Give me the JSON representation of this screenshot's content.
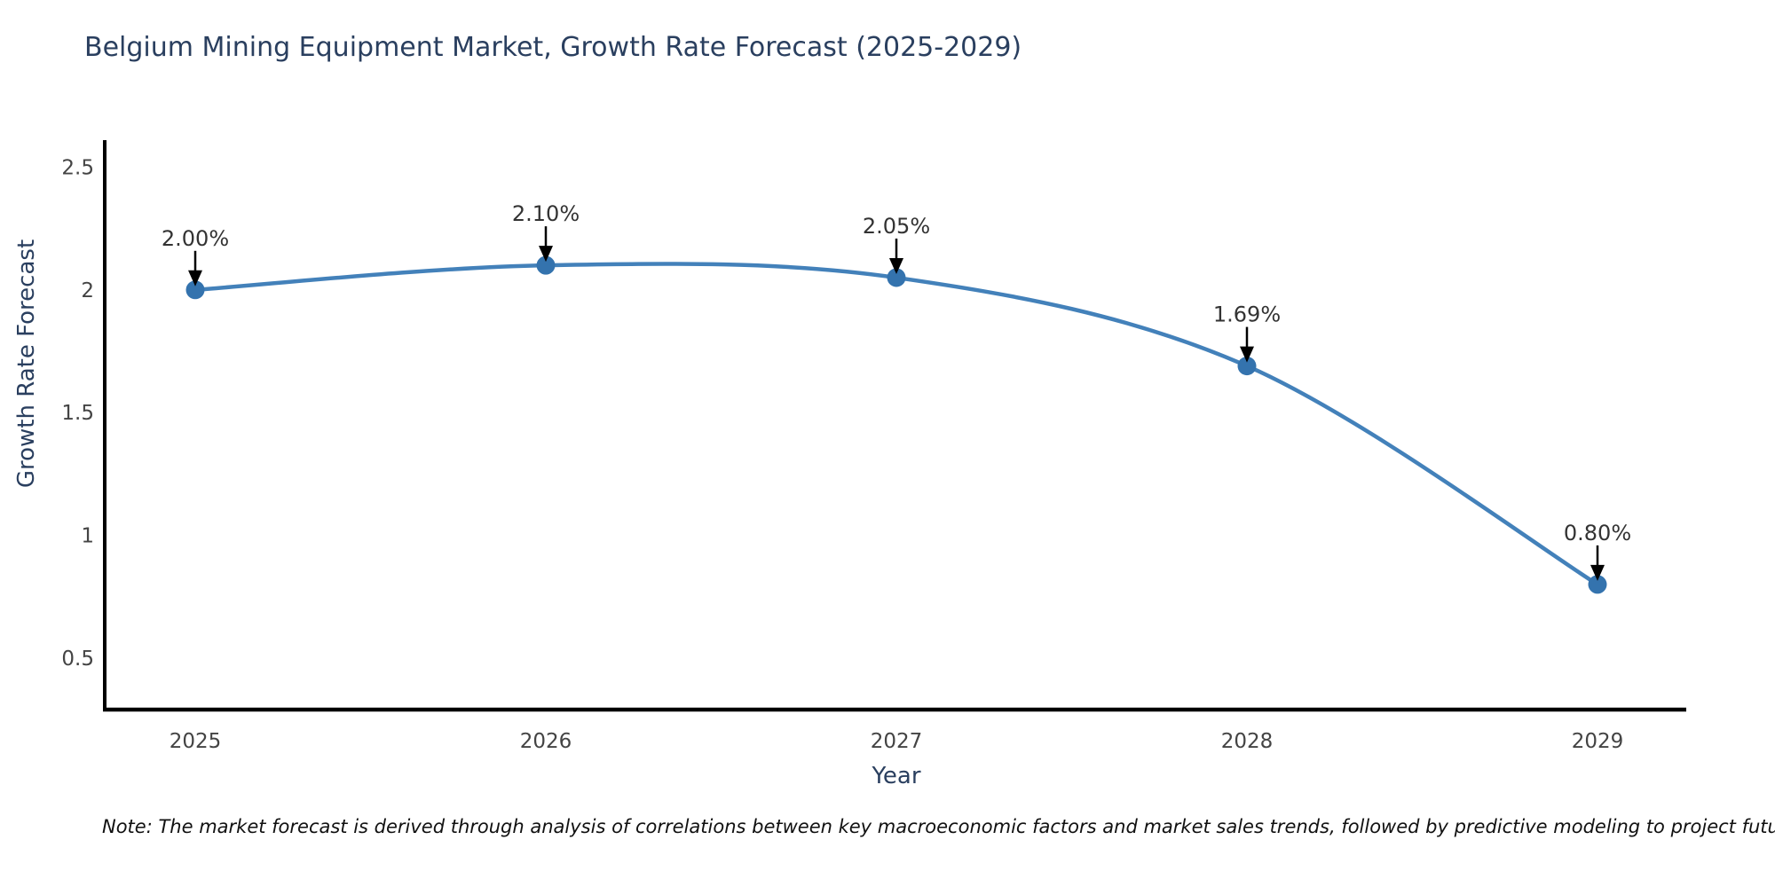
{
  "chart": {
    "note": "Note: The market forecast is derived through analysis of correlations between key macroeconomic factors and market sales trends, followed by predictive modeling to project future sales"
  },
  "chart_data": {
    "type": "line",
    "title": "Belgium Mining Equipment Market, Growth Rate Forecast (2025-2029)",
    "xlabel": "Year",
    "ylabel": "Growth Rate Forecast",
    "categories": [
      "2025",
      "2026",
      "2027",
      "2028",
      "2029"
    ],
    "x": [
      2025,
      2026,
      2027,
      2028,
      2029
    ],
    "series": [
      {
        "name": "Growth Rate Forecast",
        "values": [
          2.0,
          2.1,
          2.05,
          1.69,
          0.8
        ]
      }
    ],
    "point_labels": [
      "2.00%",
      "2.10%",
      "2.05%",
      "1.69%",
      "0.80%"
    ],
    "yticks": [
      0.5,
      1,
      1.5,
      2,
      2.5
    ],
    "ytick_labels": [
      "0.5",
      "1",
      "1.5",
      "2",
      "2.5"
    ],
    "ylim": [
      0.29,
      2.61
    ],
    "grid": false,
    "legend_position": "none",
    "line_shape": "spline",
    "colors": {
      "line": "#4381ba",
      "marker": "#3473ae",
      "axis": "#000000",
      "tick_label": "#444444",
      "title": "#2a3f5f",
      "annotation_text": "#333333",
      "annotation_arrow": "#000000",
      "background": "#ffffff"
    }
  }
}
